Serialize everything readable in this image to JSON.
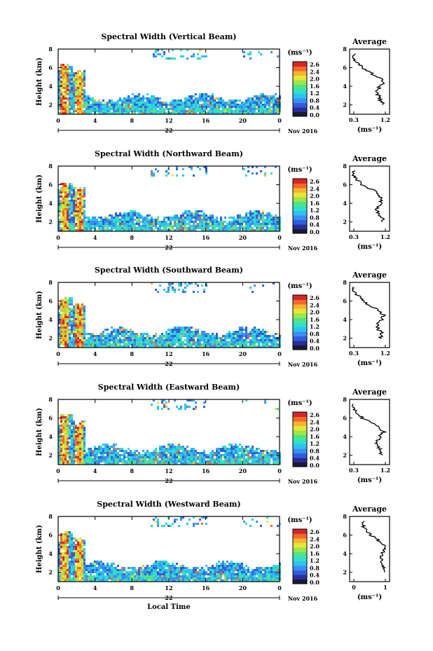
{
  "chart_data": [
    {
      "type": "heatmap",
      "title": "Spectral Width (Vertical Beam)",
      "ylabel": "Height (km)",
      "xticks": [
        "0",
        "4",
        "8",
        "12",
        "16",
        "20",
        "0"
      ],
      "date_label": "22",
      "month_label": "Nov 2016",
      "yticks": [
        "2",
        "4",
        "6",
        "8"
      ],
      "xlim": [
        0,
        24
      ],
      "ylim": [
        1,
        8
      ],
      "colorbar": {
        "unit": "(ms⁻¹)",
        "ticks": [
          "2.6",
          "2.4",
          "2.0",
          "1.6",
          "1.2",
          "0.8",
          "0.4",
          "0.0"
        ]
      },
      "profile": {
        "title": "Average",
        "xticks": [
          "0.3",
          "1.2"
        ],
        "xlabel": "(ms⁻¹)",
        "yticks": [
          "2",
          "4",
          "6",
          "8"
        ],
        "heights": [
          2,
          2.5,
          3,
          3.5,
          4,
          4.5,
          5,
          5.5,
          6,
          6.5,
          7,
          7.5
        ],
        "values": [
          1.15,
          1.05,
          1.0,
          0.95,
          1.05,
          1.15,
          1.0,
          0.75,
          0.55,
          0.4,
          0.3,
          0.3
        ]
      }
    },
    {
      "type": "heatmap",
      "title": "Spectral Width (Northward Beam)",
      "ylabel": "Height (km)",
      "xticks": [
        "0",
        "4",
        "8",
        "12",
        "16",
        "20",
        "0"
      ],
      "date_label": "22",
      "month_label": "Nov 2016",
      "yticks": [
        "2",
        "4",
        "6",
        "8"
      ],
      "xlim": [
        0,
        24
      ],
      "ylim": [
        1,
        8
      ],
      "colorbar": {
        "unit": "(ms⁻¹)",
        "ticks": [
          "2.6",
          "2.4",
          "2.0",
          "1.6",
          "1.2",
          "0.8",
          "0.4",
          "0.0"
        ]
      },
      "profile": {
        "title": "Average",
        "xticks": [
          "0.3",
          "1.2"
        ],
        "xlabel": "(ms⁻¹)",
        "yticks": [
          "2",
          "4",
          "6",
          "8"
        ],
        "heights": [
          2,
          2.5,
          3,
          3.5,
          4,
          4.5,
          5,
          5.5,
          6,
          6.5,
          7,
          7.5
        ],
        "values": [
          1.15,
          1.1,
          1.0,
          0.95,
          1.05,
          1.1,
          1.0,
          0.8,
          0.55,
          0.4,
          0.3,
          0.3
        ]
      }
    },
    {
      "type": "heatmap",
      "title": "Spectral Width (Southward Beam)",
      "ylabel": "Height (km)",
      "xticks": [
        "0",
        "4",
        "8",
        "12",
        "16",
        "20",
        "0"
      ],
      "date_label": "22",
      "month_label": "Nov 2016",
      "yticks": [
        "2",
        "4",
        "6",
        "8"
      ],
      "xlim": [
        0,
        24
      ],
      "ylim": [
        1,
        8
      ],
      "colorbar": {
        "unit": "(ms⁻¹)",
        "ticks": [
          "2.6",
          "2.4",
          "2.0",
          "1.6",
          "1.2",
          "0.8",
          "0.4",
          "0.0"
        ]
      },
      "profile": {
        "title": "Average",
        "xticks": [
          "0.3",
          "1.2"
        ],
        "xlabel": "(ms⁻¹)",
        "yticks": [
          "2",
          "4",
          "6",
          "8"
        ],
        "heights": [
          2,
          2.5,
          3,
          3.5,
          4,
          4.5,
          5,
          5.5,
          6,
          6.5,
          7,
          7.5
        ],
        "values": [
          1.05,
          1.1,
          1.0,
          0.95,
          1.1,
          1.15,
          1.0,
          0.75,
          0.55,
          0.45,
          0.3,
          0.3
        ]
      }
    },
    {
      "type": "heatmap",
      "title": "Spectral Width (Eastward Beam)",
      "ylabel": "Height (km)",
      "xticks": [
        "0",
        "4",
        "8",
        "12",
        "16",
        "20",
        "0"
      ],
      "date_label": "22",
      "month_label": "Nov 2016",
      "yticks": [
        "2",
        "4",
        "6",
        "8"
      ],
      "xlim": [
        0,
        24
      ],
      "ylim": [
        1,
        8
      ],
      "colorbar": {
        "unit": "(ms⁻¹)",
        "ticks": [
          "2.6",
          "2.4",
          "2.0",
          "1.6",
          "1.2",
          "0.8",
          "0.4",
          "0.0"
        ]
      },
      "profile": {
        "title": "Average",
        "xticks": [
          "0.3",
          "1.2"
        ],
        "xlabel": "(ms⁻¹)",
        "yticks": [
          "2",
          "4",
          "6",
          "8"
        ],
        "heights": [
          2,
          2.5,
          3,
          3.5,
          4,
          4.5,
          5,
          5.5,
          6,
          6.5,
          7,
          7.5
        ],
        "values": [
          1.1,
          1.05,
          1.0,
          0.95,
          1.05,
          1.15,
          1.0,
          0.8,
          0.55,
          0.4,
          0.3,
          0.3
        ]
      }
    },
    {
      "type": "heatmap",
      "title": "Spectral Width (Westward Beam)",
      "ylabel": "Height (km)",
      "xticks": [
        "0",
        "4",
        "8",
        "12",
        "16",
        "20",
        "0"
      ],
      "date_label": "22",
      "month_label": "Nov 2016",
      "xlabel": "Local Time",
      "yticks": [
        "2",
        "4",
        "6",
        "8"
      ],
      "xlim": [
        0,
        24
      ],
      "ylim": [
        1,
        8
      ],
      "colorbar": {
        "unit": "(ms⁻¹)",
        "ticks": [
          "2.6",
          "2.4",
          "2.0",
          "1.6",
          "1.2",
          "0.8",
          "0.4",
          "0.0"
        ]
      },
      "profile": {
        "title": "Average",
        "xticks": [
          "0",
          "1"
        ],
        "xlabel": "(ms⁻¹)",
        "yticks": [
          "2",
          "4",
          "6",
          "8"
        ],
        "heights": [
          2,
          2.5,
          3,
          3.5,
          4,
          4.5,
          5,
          5.5,
          6,
          6.5,
          7,
          7.5
        ],
        "values": [
          1.0,
          0.95,
          0.9,
          0.85,
          0.9,
          1.0,
          0.95,
          0.75,
          0.55,
          0.4,
          0.3,
          0.3
        ]
      }
    }
  ],
  "colormap": [
    "#1a1a2e",
    "#2c2c9a",
    "#2f5fd8",
    "#3b8ff0",
    "#2cc3f0",
    "#31e0c8",
    "#4fe38a",
    "#9be64a",
    "#e6e63a",
    "#f5b431",
    "#f26a2a",
    "#d6262a"
  ]
}
